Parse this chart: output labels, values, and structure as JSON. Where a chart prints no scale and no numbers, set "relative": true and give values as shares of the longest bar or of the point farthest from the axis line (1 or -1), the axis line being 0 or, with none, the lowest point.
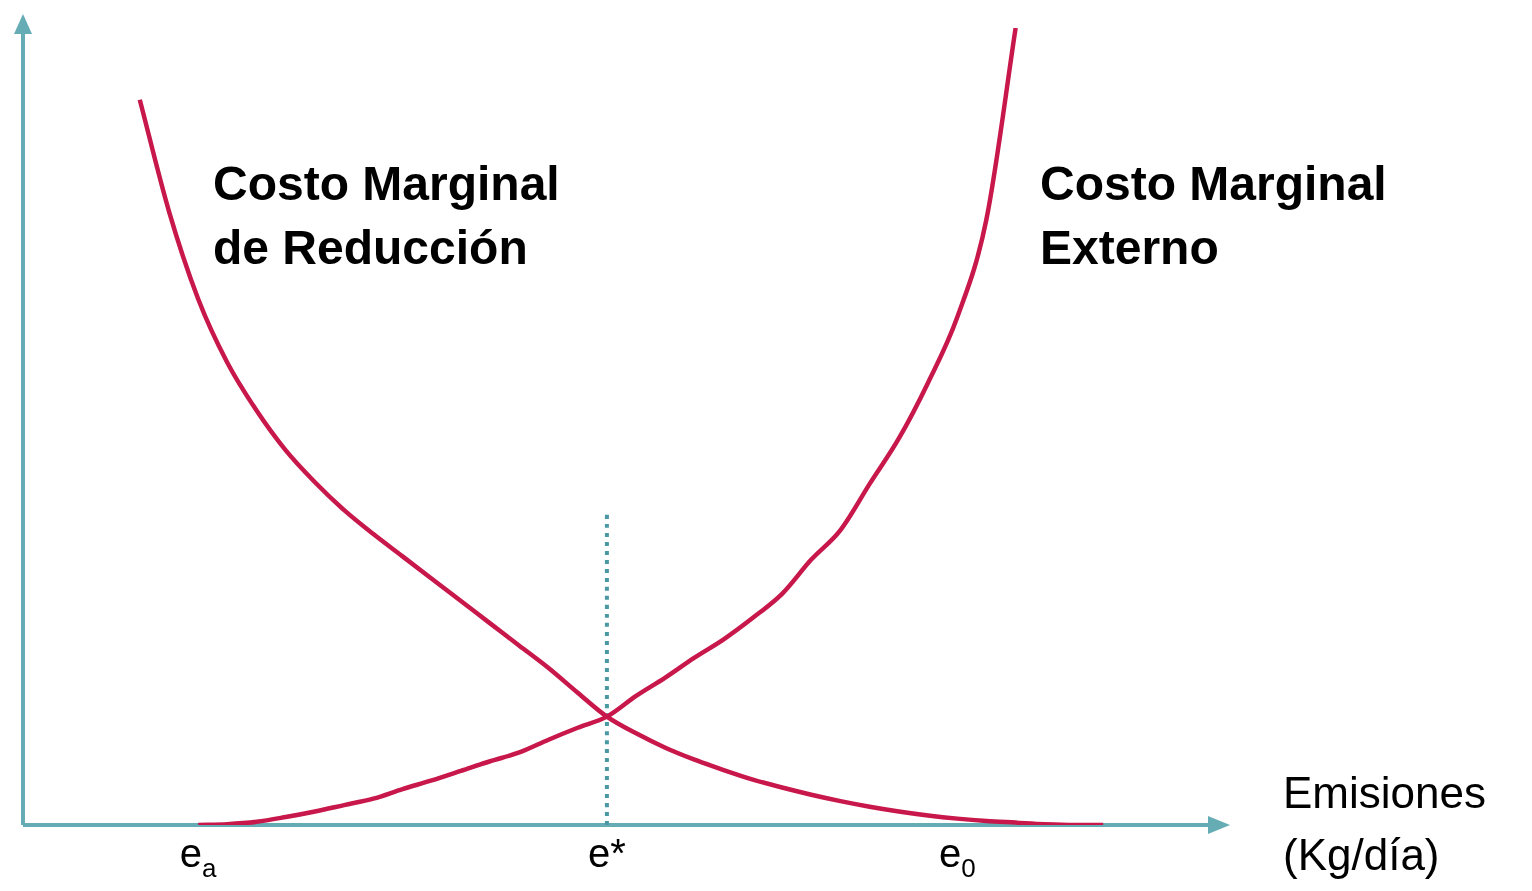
{
  "chart_data": {
    "type": "line",
    "relative": true,
    "xlabel": "Emisiones (Kg/día)",
    "marker": "none",
    "categories": [
      null,
      null,
      null,
      null,
      null,
      null,
      "e$_{a}$",
      null,
      null,
      null,
      null,
      null,
      null,
      null,
      null,
      null,
      null,
      null,
      null,
      null,
      "e*",
      null,
      null,
      null,
      null,
      null,
      null,
      null,
      null,
      null,
      null,
      null,
      "e$_{0}$",
      null,
      null,
      null,
      null,
      null,
      null,
      null,
      null,
      null
    ],
    "series": [
      {
        "name": "Costo Marginal de Reducción",
        "color": "#c8174b",
        "values": [
          null,
          null,
          null,
          null,
          0.91,
          0.77,
          0.66,
          0.58,
          0.52,
          0.47,
          0.43,
          0.395,
          0.365,
          0.337,
          0.309,
          0.281,
          0.253,
          0.225,
          0.197,
          0.166,
          0.136,
          0.115,
          0.097,
          0.082,
          0.069,
          0.057,
          0.047,
          0.038,
          0.03,
          0.023,
          0.017,
          0.012,
          0.008,
          0.005,
          0.003,
          0.001,
          0,
          0,
          null,
          null,
          null,
          null
        ]
      },
      {
        "name": "Costo Marginal Externo",
        "color": "#c8174b",
        "values": [
          null,
          null,
          null,
          null,
          null,
          null,
          0,
          0.001,
          0.004,
          0.01,
          0.017,
          0.025,
          0.033,
          0.045,
          0.056,
          0.068,
          0.08,
          0.091,
          0.107,
          0.122,
          0.136,
          0.162,
          0.185,
          0.21,
          0.233,
          0.26,
          0.29,
          0.333,
          0.37,
          0.428,
          0.485,
          0.555,
          0.637,
          0.76,
          1,
          null,
          null,
          null,
          null,
          null,
          null,
          null
        ]
      },
      {
        "type": "line",
        "x": [
          "e*",
          "e*"
        ],
        "values": [
          0,
          0.395
        ],
        "color": "#4a98a3",
        "line_style": "dotted"
      }
    ]
  }
}
